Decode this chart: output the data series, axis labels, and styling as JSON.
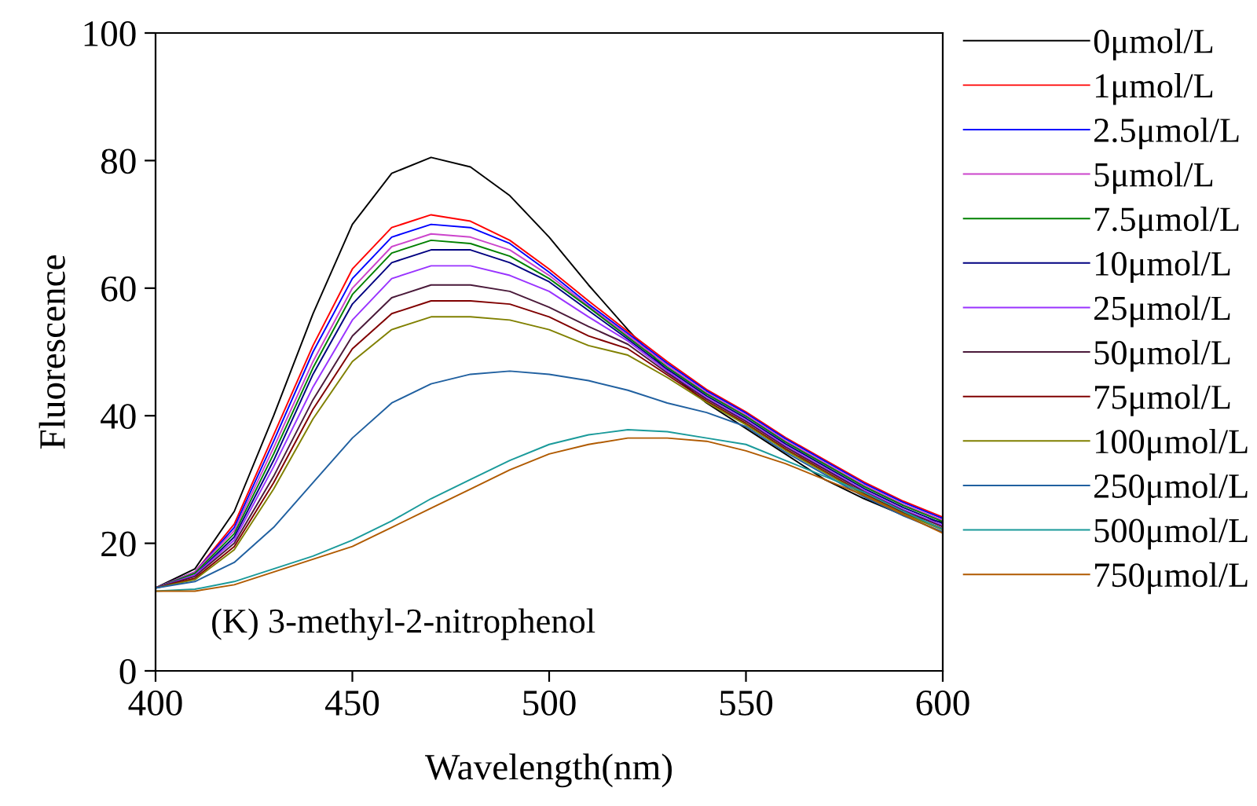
{
  "chart_data": {
    "type": "line",
    "xlabel": "Wavelength(nm)",
    "ylabel": "Fluorescence",
    "annotations": [
      "(K) 3-methyl-2-nitrophenol"
    ],
    "x": [
      400,
      410,
      420,
      430,
      440,
      450,
      460,
      470,
      480,
      490,
      500,
      510,
      520,
      530,
      540,
      550,
      560,
      570,
      580,
      590,
      600
    ],
    "xlim": [
      400,
      600
    ],
    "xticks": [
      400,
      450,
      500,
      550,
      600
    ],
    "ylim": [
      0,
      100
    ],
    "yticks": [
      0,
      20,
      40,
      60,
      80,
      100
    ],
    "grid": false,
    "legend": "right",
    "marker": "none",
    "line_style": "solid",
    "series": [
      {
        "name": "0μmol/L",
        "color": "#000000",
        "values": [
          13,
          16,
          25,
          40,
          56,
          70,
          78,
          80.5,
          79,
          74.5,
          68,
          60.5,
          53.5,
          47,
          42,
          38,
          34,
          30,
          27,
          24.4,
          23.3
        ]
      },
      {
        "name": "1μmol/L",
        "color": "#ff0000",
        "values": [
          13,
          15.5,
          23,
          37,
          51,
          63,
          69.5,
          71.5,
          70.5,
          67.5,
          63,
          58,
          53.2,
          48.5,
          44.1,
          40.6,
          36.6,
          33.1,
          29.6,
          26.6,
          24.1
        ]
      },
      {
        "name": "2.5μmol/L",
        "color": "#0000ff",
        "values": [
          13,
          15.5,
          22.5,
          36,
          50,
          61.5,
          68,
          70,
          69.5,
          67,
          62.5,
          57.5,
          52.9,
          48.2,
          43.9,
          40.4,
          36.4,
          32.9,
          29.4,
          26.4,
          23.9
        ]
      },
      {
        "name": "5μmol/L",
        "color": "#cc44cc",
        "values": [
          13,
          15.5,
          22,
          35,
          48.5,
          60,
          66.5,
          68.5,
          68,
          66,
          62,
          57.2,
          52.6,
          47.9,
          43.6,
          40.1,
          36.1,
          32.6,
          29.1,
          26.1,
          23.6
        ]
      },
      {
        "name": "7.5μmol/L",
        "color": "#008000",
        "values": [
          13,
          15.3,
          21.5,
          34,
          47.5,
          59,
          65.5,
          67.5,
          67,
          65,
          61.5,
          57,
          52.3,
          47.6,
          43.4,
          39.9,
          35.9,
          32.4,
          28.9,
          25.9,
          23.4
        ]
      },
      {
        "name": "10μmol/L",
        "color": "#000080",
        "values": [
          13,
          15,
          21,
          33,
          46.5,
          57.5,
          64,
          66,
          66,
          64,
          61,
          56.5,
          52,
          47.3,
          43.1,
          39.6,
          35.6,
          32.1,
          28.6,
          25.6,
          23.1
        ]
      },
      {
        "name": "25μmol/L",
        "color": "#9933ff",
        "values": [
          13,
          15,
          20.5,
          32,
          44.5,
          55,
          61.5,
          63.5,
          63.5,
          62,
          59.5,
          55.5,
          51.7,
          47,
          42.8,
          39.3,
          35.3,
          31.8,
          28.3,
          25.3,
          22.8
        ]
      },
      {
        "name": "50μmol/L",
        "color": "#4a1a3a",
        "values": [
          13,
          14.8,
          20,
          30.5,
          42.5,
          52.5,
          58.5,
          60.5,
          60.5,
          59.5,
          57,
          54,
          51.2,
          46.7,
          42.6,
          39.1,
          35.1,
          31.6,
          28.1,
          25.1,
          22.6
        ]
      },
      {
        "name": "75μmol/L",
        "color": "#800000",
        "values": [
          13,
          14.5,
          19.5,
          29.5,
          41,
          50.5,
          56,
          58,
          58,
          57.5,
          55.5,
          52.5,
          50.5,
          46.4,
          42.3,
          38.8,
          34.8,
          31.3,
          27.8,
          24.8,
          22.3
        ]
      },
      {
        "name": "100μmol/L",
        "color": "#808000",
        "values": [
          13,
          14.3,
          19,
          28.5,
          39.5,
          48.5,
          53.5,
          55.5,
          55.5,
          55,
          53.5,
          51,
          49.5,
          46,
          42.1,
          38.6,
          34.6,
          31.1,
          27.6,
          24.6,
          22.1
        ]
      },
      {
        "name": "250μmol/L",
        "color": "#2060a0",
        "values": [
          13,
          14,
          17,
          22.5,
          29.5,
          36.5,
          42,
          45,
          46.5,
          47,
          46.5,
          45.5,
          44,
          42,
          40.5,
          38.3,
          34.3,
          30.8,
          27.3,
          24.3,
          21.8
        ]
      },
      {
        "name": "500μmol/L",
        "color": "#1a9a9a",
        "values": [
          12.5,
          12.8,
          14,
          16,
          18,
          20.5,
          23.5,
          27,
          30,
          33,
          35.5,
          37,
          37.8,
          37.5,
          36.5,
          35.5,
          33,
          30.5,
          28,
          25,
          22.2
        ]
      },
      {
        "name": "750μmol/L",
        "color": "#b05a00",
        "values": [
          12.5,
          12.5,
          13.5,
          15.5,
          17.5,
          19.5,
          22.5,
          25.5,
          28.5,
          31.5,
          34,
          35.5,
          36.5,
          36.5,
          36,
          34.5,
          32.5,
          30,
          27.5,
          24.5,
          21.6
        ]
      }
    ]
  }
}
